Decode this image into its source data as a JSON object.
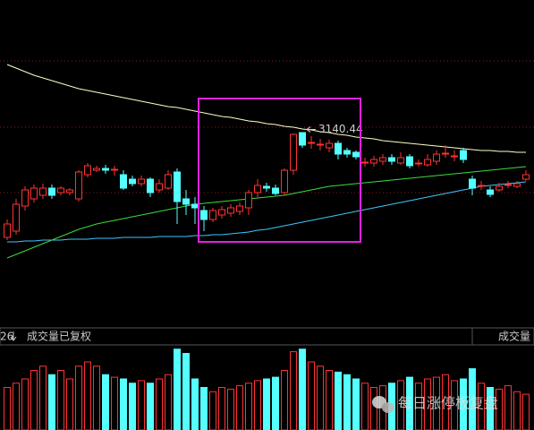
{
  "chart_data": {
    "type": "candlestick",
    "ylim": [
      2928,
      3288
    ],
    "up_color": "#ff3232",
    "down_color": "#54ffff",
    "open": [
      3023,
      3030,
      3058,
      3066,
      3070,
      3078,
      3073,
      3073,
      3066,
      3093,
      3098,
      3100,
      3098,
      3093,
      3088,
      3083,
      3088,
      3076,
      3078,
      3096,
      3066,
      3060,
      3053,
      3043,
      3048,
      3050,
      3052,
      3056,
      3073,
      3080,
      3078,
      3073,
      3098,
      3140,
      3128,
      3126,
      3123,
      3128,
      3120,
      3118,
      3106,
      3106,
      3108,
      3112,
      3106,
      3113,
      3105,
      3104,
      3108,
      3116,
      3113,
      3120,
      3088,
      3080,
      3076,
      3076,
      3081,
      3080,
      3088
    ],
    "high": [
      3043,
      3066,
      3080,
      3082,
      3083,
      3082,
      3080,
      3078,
      3098,
      3106,
      3103,
      3104,
      3103,
      3098,
      3092,
      3092,
      3090,
      3088,
      3098,
      3100,
      3076,
      3068,
      3058,
      3056,
      3058,
      3060,
      3062,
      3076,
      3088,
      3084,
      3082,
      3100,
      3139,
      3140.44,
      3136,
      3133,
      3132,
      3131,
      3123,
      3120,
      3112,
      3114,
      3116,
      3116,
      3118,
      3116,
      3110,
      3116,
      3120,
      3126,
      3120,
      3123,
      3092,
      3086,
      3080,
      3084,
      3086,
      3086,
      3098
    ],
    "low": [
      3020,
      3026,
      3053,
      3062,
      3066,
      3066,
      3070,
      3070,
      3063,
      3090,
      3096,
      3094,
      3092,
      3076,
      3080,
      3080,
      3068,
      3073,
      3076,
      3038,
      3048,
      3038,
      3030,
      3040,
      3044,
      3046,
      3048,
      3048,
      3068,
      3074,
      3070,
      3070,
      3093,
      3123,
      3122,
      3120,
      3118,
      3110,
      3112,
      3110,
      3102,
      3102,
      3104,
      3104,
      3104,
      3100,
      3102,
      3102,
      3104,
      3112,
      3108,
      3106,
      3070,
      3076,
      3068,
      3074,
      3078,
      3078,
      3086
    ],
    "close": [
      3038,
      3060,
      3076,
      3078,
      3078,
      3070,
      3078,
      3076,
      3096,
      3103,
      3100,
      3098,
      3099,
      3078,
      3083,
      3088,
      3073,
      3083,
      3093,
      3063,
      3060,
      3056,
      3043,
      3053,
      3054,
      3056,
      3058,
      3073,
      3081,
      3078,
      3072,
      3098,
      3138,
      3126,
      3129,
      3127,
      3128,
      3116,
      3116,
      3113,
      3107,
      3110,
      3112,
      3108,
      3112,
      3103,
      3106,
      3110,
      3116,
      3117,
      3114,
      3110,
      3078,
      3081,
      3071,
      3080,
      3082,
      3083,
      3093
    ],
    "lines": [
      {
        "color": "#ffffc8",
        "values": [
          3216,
          3212,
          3208,
          3204,
          3201,
          3198,
          3195,
          3192,
          3189,
          3187,
          3185,
          3183,
          3181,
          3179,
          3177,
          3175,
          3173,
          3171,
          3169,
          3168,
          3166,
          3164,
          3162,
          3160,
          3158,
          3157,
          3155,
          3153,
          3152,
          3150,
          3149,
          3147,
          3146,
          3144,
          3143,
          3141,
          3140,
          3138,
          3137,
          3135,
          3134,
          3133,
          3131,
          3130,
          3129,
          3128,
          3127,
          3126,
          3125,
          3124,
          3123,
          3122,
          3121,
          3120,
          3120,
          3119,
          3119,
          3118,
          3118
        ]
      },
      {
        "color": "#3ec8ff",
        "values": [
          3018,
          3018,
          3019,
          3019,
          3020,
          3020,
          3020,
          3021,
          3021,
          3021,
          3022,
          3022,
          3022,
          3023,
          3023,
          3023,
          3023,
          3024,
          3024,
          3024,
          3024,
          3025,
          3025,
          3026,
          3026,
          3027,
          3028,
          3029,
          3031,
          3032,
          3034,
          3036,
          3038,
          3040,
          3042,
          3044,
          3046,
          3048,
          3050,
          3052,
          3054,
          3056,
          3058,
          3060,
          3062,
          3064,
          3066,
          3068,
          3070,
          3072,
          3074,
          3076,
          3078,
          3080,
          3081,
          3082,
          3083,
          3084,
          3085
        ]
      },
      {
        "color": "#3cdc3c",
        "values": [
          3000,
          3004,
          3008,
          3012,
          3016,
          3020,
          3024,
          3028,
          3032,
          3035,
          3038,
          3040,
          3042,
          3044,
          3046,
          3048,
          3050,
          3052,
          3054,
          3056,
          3058,
          3060,
          3061,
          3062,
          3063,
          3064,
          3065,
          3066,
          3067,
          3068,
          3069,
          3070,
          3072,
          3074,
          3076,
          3078,
          3080,
          3081,
          3082,
          3083,
          3084,
          3085,
          3086,
          3087,
          3088,
          3089,
          3090,
          3091,
          3092,
          3093,
          3094,
          3095,
          3096,
          3097,
          3098,
          3099,
          3100,
          3101,
          3102
        ]
      }
    ],
    "annotation": "3140.44",
    "volume_lim": [
      0,
      100
    ],
    "volume": [
      50,
      55,
      60,
      70,
      75,
      65,
      70,
      60,
      75,
      80,
      75,
      65,
      62,
      60,
      55,
      58,
      55,
      60,
      65,
      95,
      90,
      60,
      50,
      45,
      50,
      48,
      52,
      55,
      58,
      60,
      62,
      70,
      92,
      95,
      80,
      75,
      70,
      68,
      65,
      60,
      55,
      50,
      52,
      55,
      58,
      62,
      55,
      60,
      62,
      65,
      58,
      60,
      72,
      55,
      50,
      48,
      52,
      45,
      42
    ],
    "volume_panel": {
      "left_label": "26",
      "title": "成交量已复权",
      "right_label": "成交量"
    },
    "watermark": "每日涨停板复盘"
  }
}
